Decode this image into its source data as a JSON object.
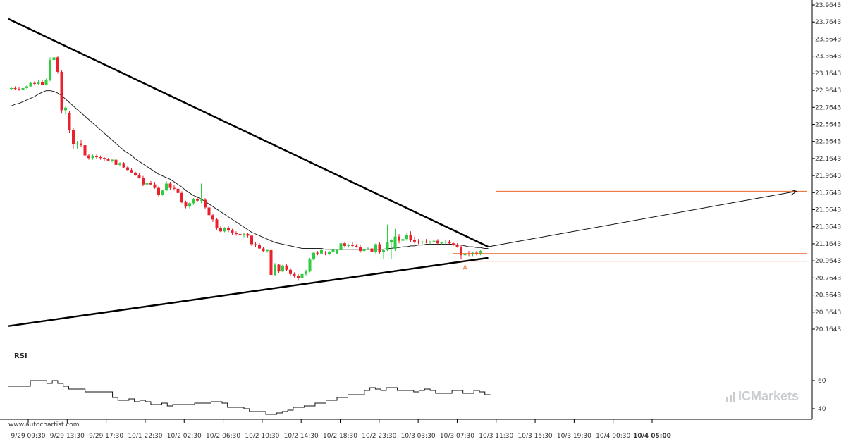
{
  "chart_data": {
    "type": "candlestick",
    "price_panel": {
      "ylim": [
        20.1643,
        23.9643
      ],
      "yticks": [
        "23.9643",
        "23.7643",
        "23.5643",
        "23.3643",
        "23.1643",
        "22.9643",
        "22.7643",
        "22.5643",
        "22.3643",
        "22.1643",
        "21.9643",
        "21.7643",
        "21.5643",
        "21.3643",
        "21.1643",
        "20.9643",
        "20.7643",
        "20.5643",
        "20.3643",
        "20.1643"
      ],
      "candles": [
        [
          22.98,
          23.0,
          22.97,
          22.99
        ],
        [
          22.99,
          23.01,
          22.97,
          22.98
        ],
        [
          22.98,
          23.0,
          22.96,
          22.97
        ],
        [
          22.97,
          23.0,
          22.96,
          22.99
        ],
        [
          22.99,
          23.02,
          22.98,
          23.01
        ],
        [
          23.01,
          23.06,
          23.0,
          23.05
        ],
        [
          23.05,
          23.07,
          23.02,
          23.04
        ],
        [
          23.04,
          23.08,
          23.03,
          23.06
        ],
        [
          23.06,
          23.08,
          23.02,
          23.03
        ],
        [
          23.03,
          23.1,
          23.02,
          23.08
        ],
        [
          23.08,
          23.35,
          23.07,
          23.32
        ],
        [
          23.32,
          23.6,
          23.3,
          23.35
        ],
        [
          23.35,
          23.37,
          23.16,
          23.18
        ],
        [
          23.18,
          23.2,
          22.69,
          22.73
        ],
        [
          22.73,
          22.78,
          22.68,
          22.76
        ],
        [
          22.7,
          22.72,
          22.46,
          22.5
        ],
        [
          22.5,
          22.52,
          22.28,
          22.33
        ],
        [
          22.33,
          22.37,
          22.28,
          22.34
        ],
        [
          22.34,
          22.38,
          22.3,
          22.32
        ],
        [
          22.32,
          22.35,
          22.16,
          22.2
        ],
        [
          22.2,
          22.22,
          22.15,
          22.17
        ],
        [
          22.17,
          22.21,
          22.15,
          22.19
        ],
        [
          22.19,
          22.21,
          22.16,
          22.18
        ],
        [
          22.18,
          22.2,
          22.15,
          22.17
        ],
        [
          22.17,
          22.18,
          22.13,
          22.16
        ],
        [
          22.16,
          22.17,
          22.13,
          22.14
        ],
        [
          22.14,
          22.16,
          22.12,
          22.15
        ],
        [
          22.15,
          22.16,
          22.08,
          22.09
        ],
        [
          22.09,
          22.12,
          22.07,
          22.11
        ],
        [
          22.11,
          22.12,
          22.05,
          22.06
        ],
        [
          22.06,
          22.08,
          22.02,
          22.03
        ],
        [
          22.03,
          22.05,
          21.99,
          22.0
        ],
        [
          22.0,
          22.01,
          21.96,
          21.97
        ],
        [
          21.97,
          21.99,
          21.93,
          21.94
        ],
        [
          21.94,
          21.96,
          21.84,
          21.86
        ],
        [
          21.86,
          21.89,
          21.84,
          21.88
        ],
        [
          21.88,
          21.9,
          21.85,
          21.86
        ],
        [
          21.86,
          21.89,
          21.81,
          21.82
        ],
        [
          21.82,
          21.84,
          21.72,
          21.74
        ],
        [
          21.74,
          21.8,
          21.73,
          21.79
        ],
        [
          21.79,
          21.9,
          21.78,
          21.87
        ],
        [
          21.87,
          21.89,
          21.8,
          21.82
        ],
        [
          21.82,
          21.85,
          21.79,
          21.81
        ],
        [
          21.81,
          21.83,
          21.74,
          21.76
        ],
        [
          21.76,
          21.78,
          21.64,
          21.65
        ],
        [
          21.65,
          21.67,
          21.58,
          21.6
        ],
        [
          21.6,
          21.65,
          21.58,
          21.64
        ],
        [
          21.64,
          21.7,
          21.62,
          21.69
        ],
        [
          21.69,
          21.72,
          21.66,
          21.67
        ],
        [
          21.67,
          21.87,
          21.64,
          21.68
        ],
        [
          21.68,
          21.7,
          21.57,
          21.59
        ],
        [
          21.59,
          21.61,
          21.48,
          21.5
        ],
        [
          21.5,
          21.52,
          21.42,
          21.45
        ],
        [
          21.45,
          21.47,
          21.33,
          21.35
        ],
        [
          21.35,
          21.37,
          21.3,
          21.31
        ],
        [
          21.31,
          21.36,
          21.3,
          21.35
        ],
        [
          21.35,
          21.37,
          21.3,
          21.32
        ],
        [
          21.32,
          21.34,
          21.27,
          21.29
        ],
        [
          21.29,
          21.31,
          21.26,
          21.28
        ],
        [
          21.28,
          21.3,
          21.24,
          21.27
        ],
        [
          21.27,
          21.29,
          21.24,
          21.28
        ],
        [
          21.28,
          21.29,
          21.24,
          21.26
        ],
        [
          21.26,
          21.27,
          21.14,
          21.16
        ],
        [
          21.16,
          21.18,
          21.13,
          21.15
        ],
        [
          21.15,
          21.17,
          21.1,
          21.11
        ],
        [
          21.11,
          21.13,
          21.07,
          21.08
        ],
        [
          21.08,
          21.1,
          21.06,
          21.09
        ],
        [
          21.09,
          21.1,
          20.72,
          20.8
        ],
        [
          20.8,
          20.94,
          20.79,
          20.92
        ],
        [
          20.92,
          20.93,
          20.82,
          20.84
        ],
        [
          20.84,
          20.92,
          20.83,
          20.91
        ],
        [
          20.91,
          20.93,
          20.85,
          20.86
        ],
        [
          20.86,
          20.88,
          20.79,
          20.81
        ],
        [
          20.81,
          20.83,
          20.77,
          20.79
        ],
        [
          20.79,
          20.81,
          20.73,
          20.76
        ],
        [
          20.76,
          20.82,
          20.75,
          20.81
        ],
        [
          20.81,
          20.86,
          20.79,
          20.84
        ],
        [
          20.84,
          21.0,
          20.83,
          20.98
        ],
        [
          20.98,
          21.07,
          20.97,
          21.06
        ],
        [
          21.06,
          21.08,
          21.03,
          21.05
        ],
        [
          21.05,
          21.1,
          21.04,
          21.09
        ],
        [
          21.05,
          21.08,
          21.03,
          21.04
        ],
        [
          21.04,
          21.08,
          21.03,
          21.07
        ],
        [
          21.07,
          21.11,
          21.06,
          21.1
        ],
        [
          21.05,
          21.1,
          21.04,
          21.09
        ],
        [
          21.09,
          21.18,
          21.08,
          21.17
        ],
        [
          21.17,
          21.19,
          21.12,
          21.14
        ],
        [
          21.14,
          21.16,
          21.12,
          21.15
        ],
        [
          21.15,
          21.18,
          21.13,
          21.14
        ],
        [
          21.14,
          21.16,
          21.12,
          21.13
        ],
        [
          21.13,
          21.15,
          21.06,
          21.08
        ],
        [
          21.08,
          21.11,
          21.07,
          21.1
        ],
        [
          21.1,
          21.13,
          21.09,
          21.11
        ],
        [
          21.11,
          21.16,
          21.05,
          21.07
        ],
        [
          21.07,
          21.17,
          21.04,
          21.16
        ],
        [
          21.16,
          21.18,
          21.05,
          21.07
        ],
        [
          21.07,
          21.1,
          20.99,
          21.09
        ],
        [
          21.09,
          21.39,
          21.08,
          21.18
        ],
        [
          21.18,
          21.22,
          20.99,
          21.21
        ],
        [
          21.1,
          21.34,
          21.08,
          21.25
        ],
        [
          21.25,
          21.28,
          21.17,
          21.2
        ],
        [
          21.2,
          21.23,
          21.18,
          21.22
        ],
        [
          21.22,
          21.29,
          21.2,
          21.27
        ],
        [
          21.27,
          21.31,
          21.19,
          21.21
        ],
        [
          21.21,
          21.25,
          21.17,
          21.19
        ],
        [
          21.19,
          21.22,
          21.16,
          21.18
        ],
        [
          21.18,
          21.2,
          21.16,
          21.19
        ],
        [
          21.19,
          21.22,
          21.17,
          21.18
        ],
        [
          21.18,
          21.2,
          21.16,
          21.19
        ],
        [
          21.19,
          21.22,
          21.17,
          21.2
        ],
        [
          21.2,
          21.22,
          21.16,
          21.17
        ],
        [
          21.17,
          21.19,
          21.16,
          21.18
        ],
        [
          21.18,
          21.21,
          21.16,
          21.19
        ],
        [
          21.19,
          21.21,
          21.16,
          21.17
        ],
        [
          21.17,
          21.18,
          21.14,
          21.15
        ],
        [
          21.15,
          21.17,
          21.12,
          21.13
        ],
        [
          21.13,
          21.15,
          20.98,
          21.03
        ],
        [
          21.03,
          21.06,
          21.0,
          21.05
        ],
        [
          21.05,
          21.08,
          21.02,
          21.04
        ],
        [
          21.04,
          21.07,
          21.02,
          21.06
        ],
        [
          21.06,
          21.08,
          21.03,
          21.04
        ],
        [
          21.04,
          21.09,
          21.03,
          21.08
        ]
      ],
      "moving_average": [
        22.78,
        22.8,
        22.81,
        22.83,
        22.85,
        22.87,
        22.89,
        22.92,
        22.94,
        22.96,
        22.96,
        22.95,
        22.93,
        22.9,
        22.86,
        22.82,
        22.78,
        22.74,
        22.7,
        22.66,
        22.62,
        22.58,
        22.54,
        22.5,
        22.46,
        22.42,
        22.38,
        22.34,
        22.3,
        22.26,
        22.23,
        22.2,
        22.16,
        22.13,
        22.1,
        22.07,
        22.04,
        22.01,
        21.98,
        21.96,
        21.94,
        21.92,
        21.89,
        21.86,
        21.83,
        21.79,
        21.76,
        21.73,
        21.71,
        21.69,
        21.66,
        21.63,
        21.6,
        21.57,
        21.54,
        21.51,
        21.48,
        21.45,
        21.42,
        21.39,
        21.36,
        21.33,
        21.3,
        21.28,
        21.26,
        21.24,
        21.22,
        21.2,
        21.18,
        21.17,
        21.16,
        21.15,
        21.14,
        21.13,
        21.12,
        21.11,
        21.11,
        21.11,
        21.11,
        21.11,
        21.11,
        21.1,
        21.1,
        21.1,
        21.1,
        21.1,
        21.1,
        21.1,
        21.1,
        21.1,
        21.1,
        21.1,
        21.1,
        21.1,
        21.1,
        21.1,
        21.1,
        21.11,
        21.11,
        21.12,
        21.12,
        21.13,
        21.13,
        21.14,
        21.14,
        21.15,
        21.15,
        21.16,
        21.16,
        21.16,
        21.16,
        21.16,
        21.16,
        21.16,
        21.16,
        21.15,
        21.15,
        21.14,
        21.13,
        21.13,
        21.12,
        21.12,
        21.11,
        21.11
      ],
      "trendlines": [
        {
          "from": [
            0,
            23.8
          ],
          "to": [
            123,
            21.13
          ],
          "style": "bold"
        },
        {
          "from": [
            0,
            20.2
          ],
          "to": [
            123,
            21.0
          ],
          "style": "bold"
        }
      ],
      "forecast_arrow": {
        "from": [
          123,
          21.13
        ],
        "to": [
          153,
          21.78
        ]
      },
      "levels": [
        {
          "value": 21.78,
          "from": 125,
          "to": 153
        },
        {
          "value": 21.05,
          "from": 114,
          "to": 153
        },
        {
          "value": 20.96,
          "from": 114,
          "to": 153
        }
      ],
      "marker_label": "A",
      "marker_index": 117
    },
    "x_labels": [
      "9/29 09:30",
      "9/29 13:30",
      "9/29 17:30",
      "10/1 22:30",
      "10/2 02:30",
      "10/2 06:30",
      "10/2 10:30",
      "10/2 14:30",
      "10/2 18:30",
      "10/2 23:30",
      "10/3 03:30",
      "10/3 07:30",
      "10/3 11:30",
      "10/3 15:30",
      "10/3 19:30",
      "10/4 00:30",
      "10/4 05:00"
    ],
    "x_label_last_bold": true,
    "rsi_panel": {
      "label": "RSI",
      "ylim": [
        35,
        70
      ],
      "yticks": [
        "60",
        "40"
      ],
      "values": [
        56,
        56,
        56,
        56,
        60,
        60,
        60,
        58,
        60,
        58,
        56,
        54,
        54,
        54,
        52,
        52,
        52,
        52,
        52,
        48,
        46,
        46,
        47,
        45,
        46,
        45,
        43,
        43,
        44,
        42,
        43,
        43,
        43,
        43,
        44,
        44,
        44,
        45,
        45,
        44,
        41,
        41,
        41,
        40,
        38,
        38,
        38,
        36,
        36,
        37,
        38,
        39,
        41,
        41,
        42,
        42,
        44,
        44,
        46,
        46,
        48,
        48,
        50,
        50,
        50,
        53,
        55,
        54,
        53,
        55,
        55,
        53,
        53,
        53,
        52,
        53,
        54,
        53,
        51,
        51,
        51,
        53,
        53,
        51,
        51,
        53,
        52,
        50,
        50
      ],
      "values_alt": []
    }
  },
  "footer": {
    "source": "www.autochartist.com",
    "brand": "ICMarkets"
  },
  "colors": {
    "up": "#2ecc40",
    "down": "#e8212d",
    "line": "#000000",
    "level": "#e8672a",
    "marker": "#e8672a",
    "grid": "#dddddd"
  }
}
